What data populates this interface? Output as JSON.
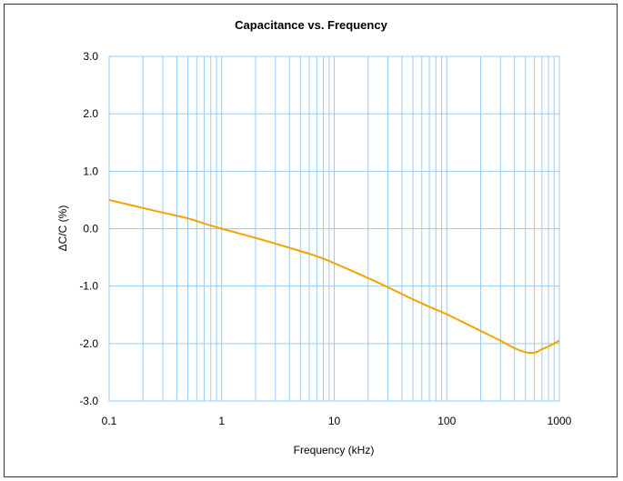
{
  "chart_data": {
    "type": "line",
    "title": "Capacitance vs. Frequency",
    "xlabel": "Frequency (kHz)",
    "ylabel": "ΔC/C (%)",
    "x_scale": "log",
    "xlim": [
      0.1,
      1000
    ],
    "ylim": [
      -3.0,
      3.0
    ],
    "grid": true,
    "x_tick_labels": [
      "0.1",
      "1",
      "10",
      "100",
      "1000"
    ],
    "y_tick_labels": [
      "3.0",
      "2.0",
      "1.0",
      "0.0",
      "-1.0",
      "-2.0",
      "-3.0"
    ],
    "series": [
      {
        "color": "#f0a500",
        "x": [
          0.1,
          0.2,
          0.3,
          0.5,
          0.7,
          1,
          2,
          3,
          5,
          7,
          10,
          20,
          30,
          50,
          70,
          100,
          200,
          300,
          400,
          500,
          600,
          700,
          800,
          1000
        ],
        "y": [
          0.5,
          0.36,
          0.28,
          0.18,
          0.09,
          0.0,
          -0.16,
          -0.26,
          -0.39,
          -0.48,
          -0.6,
          -0.86,
          -1.02,
          -1.23,
          -1.36,
          -1.49,
          -1.78,
          -1.95,
          -2.08,
          -2.15,
          -2.16,
          -2.1,
          -2.05,
          -1.95
        ]
      }
    ]
  }
}
